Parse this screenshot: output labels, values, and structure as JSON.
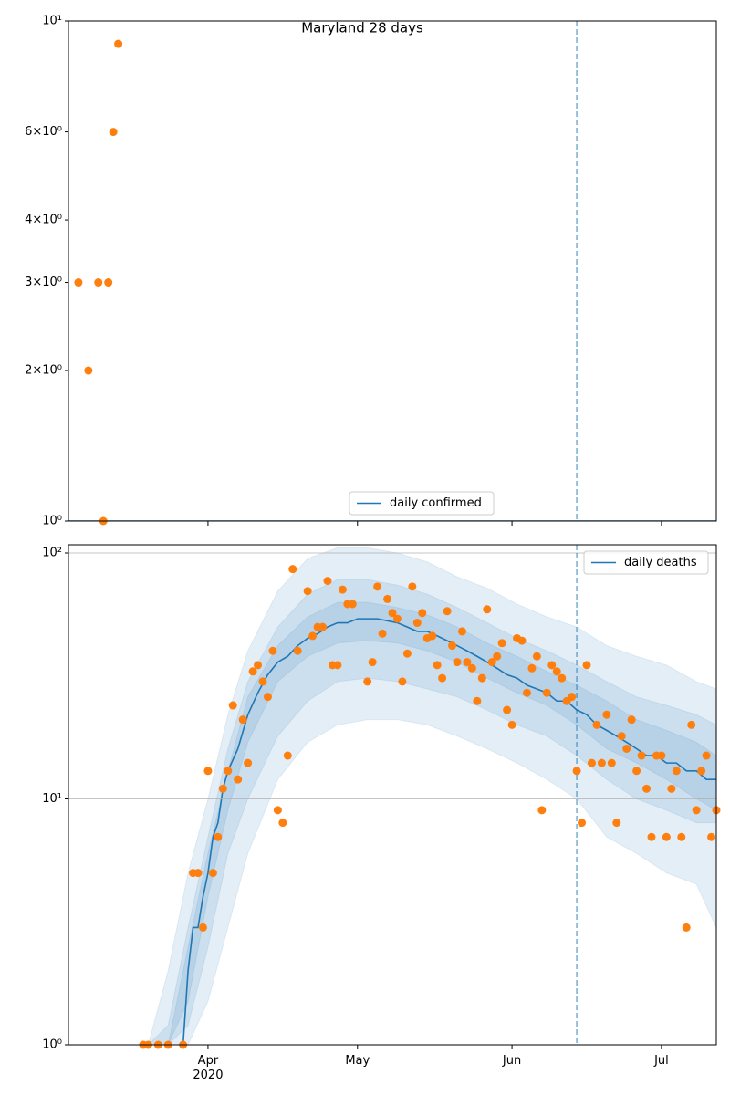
{
  "chart_data": [
    {
      "type": "line",
      "title": "Maryland 28 days",
      "log_y": true,
      "grid": false,
      "legend_loc": "lower center",
      "xlim": [
        64,
        194
      ],
      "ylim": [
        1,
        10
      ],
      "xticks": [
        {
          "value": 92,
          "label": ""
        },
        {
          "value": 122,
          "label": ""
        },
        {
          "value": 153,
          "label": ""
        },
        {
          "value": 183,
          "label": ""
        }
      ],
      "yticks": [
        {
          "value": 1,
          "label": "10⁰"
        },
        {
          "value": 2,
          "label": "2×10⁰"
        },
        {
          "value": 3,
          "label": "3×10⁰"
        },
        {
          "value": 4,
          "label": "4×10⁰"
        },
        {
          "value": 6,
          "label": "6×10⁰"
        },
        {
          "value": 10,
          "label": "10¹"
        }
      ],
      "vline_x": 166,
      "series": [
        {
          "name": "daily confirmed",
          "color": "#1f77b4",
          "x": [
            64,
            166,
            194
          ],
          "values": [
            1,
            1,
            1
          ]
        }
      ],
      "observed": {
        "color": "#ff7f0e",
        "x": [
          66,
          68,
          70,
          71,
          72,
          73,
          74
        ],
        "values": [
          3,
          2,
          3,
          1,
          3,
          6,
          9
        ]
      }
    },
    {
      "type": "line",
      "log_y": true,
      "grid": true,
      "legend_loc": "upper right",
      "xlim": [
        64,
        194
      ],
      "ylim": [
        1,
        108
      ],
      "xticks": [
        {
          "value": 92,
          "label": "Apr\n2020"
        },
        {
          "value": 122,
          "label": "May"
        },
        {
          "value": 153,
          "label": "Jun"
        },
        {
          "value": 183,
          "label": "Jul"
        }
      ],
      "yticks": [
        {
          "value": 1,
          "label": "10⁰"
        },
        {
          "value": 10,
          "label": "10¹"
        },
        {
          "value": 100,
          "label": "10²"
        }
      ],
      "vline_x": 166,
      "series": [
        {
          "name": "daily deaths",
          "color": "#1f77b4",
          "x": [
            87,
            88,
            89,
            90,
            91,
            92,
            93,
            94,
            95,
            96,
            98,
            100,
            102,
            104,
            106,
            108,
            110,
            112,
            114,
            116,
            118,
            120,
            122,
            124,
            126,
            128,
            130,
            132,
            134,
            136,
            138,
            140,
            142,
            144,
            146,
            148,
            150,
            152,
            154,
            156,
            158,
            160,
            162,
            164,
            166,
            168,
            170,
            172,
            174,
            176,
            178,
            180,
            182,
            184,
            186,
            188,
            190,
            192,
            194
          ],
          "values": [
            1,
            2,
            3,
            3,
            4,
            5,
            7,
            8,
            11,
            13,
            16,
            22,
            27,
            32,
            36,
            38,
            42,
            45,
            47,
            50,
            52,
            52,
            54,
            54,
            54,
            53,
            52,
            50,
            48,
            48,
            46,
            44,
            42,
            40,
            38,
            36,
            34,
            32,
            31,
            29,
            28,
            27,
            25,
            25,
            23,
            22,
            20,
            19,
            18,
            17,
            16,
            15,
            15,
            14,
            14,
            13,
            13,
            12,
            12
          ]
        }
      ],
      "bands": {
        "color": "#1f77b4",
        "x": [
          80,
          84,
          88,
          92,
          96,
          100,
          106,
          112,
          118,
          124,
          130,
          136,
          142,
          148,
          154,
          160,
          166,
          172,
          178,
          184,
          190,
          194
        ],
        "levels": [
          {
            "lower": [
              1,
              1,
              1,
              1.5,
              3,
              6,
              12,
              17,
              20,
              21,
              21,
              20,
              18,
              16,
              14,
              12,
              10,
              7,
              6,
              5,
              4.5,
              3
            ],
            "upper": [
              1,
              2,
              5,
              10,
              22,
              40,
              70,
              95,
              105,
              105,
              100,
              92,
              80,
              72,
              62,
              55,
              50,
              42,
              38,
              35,
              30,
              28
            ]
          },
          {
            "lower": [
              1,
              1,
              1.2,
              2.5,
              6,
              10,
              18,
              25,
              30,
              31,
              30,
              28,
              26,
              23,
              20,
              18,
              15,
              12,
              10,
              9,
              8,
              8
            ],
            "upper": [
              1,
              1.2,
              3,
              7,
              16,
              30,
              50,
              68,
              78,
              78,
              74,
              68,
              60,
              52,
              45,
              40,
              35,
              30,
              26,
              24,
              22,
              20
            ]
          },
          {
            "lower": [
              1,
              1,
              1.5,
              4,
              9,
              17,
              30,
              38,
              43,
              44,
              43,
              40,
              36,
              31,
              27,
              24,
              20,
              16,
              14,
              12,
              10,
              9
            ],
            "upper": [
              1,
              1,
              2.5,
              6,
              13,
              26,
              42,
              55,
              63,
              63,
              60,
              56,
              50,
              43,
              38,
              33,
              29,
              25,
              21,
              19,
              17,
              15
            ]
          }
        ]
      },
      "observed": {
        "color": "#ff7f0e",
        "x": [
          79,
          80,
          82,
          84,
          87,
          89,
          90,
          91,
          92,
          93,
          94,
          95,
          96,
          97,
          98,
          99,
          100,
          101,
          102,
          103,
          104,
          105,
          106,
          107,
          108,
          109,
          110,
          112,
          113,
          114,
          115,
          116,
          117,
          118,
          119,
          120,
          121,
          124,
          125,
          126,
          127,
          128,
          129,
          130,
          131,
          132,
          133,
          134,
          135,
          136,
          137,
          138,
          139,
          140,
          141,
          142,
          143,
          144,
          145,
          146,
          147,
          148,
          149,
          150,
          151,
          152,
          153,
          154,
          155,
          156,
          157,
          158,
          159,
          160,
          161,
          162,
          163,
          164,
          165,
          166,
          167,
          168,
          169,
          170,
          171,
          172,
          173,
          174,
          175,
          176,
          177,
          178,
          179,
          180,
          181,
          182,
          183,
          184,
          185,
          186,
          187,
          188,
          189,
          190,
          191,
          192,
          193,
          194
        ],
        "values": [
          1,
          1,
          1,
          1,
          1,
          5,
          5,
          3,
          13,
          5,
          7,
          11,
          13,
          24,
          12,
          21,
          14,
          33,
          35,
          30,
          26,
          40,
          9,
          8,
          15,
          86,
          40,
          70,
          46,
          50,
          50,
          77,
          35,
          35,
          71,
          62,
          62,
          30,
          36,
          73,
          47,
          65,
          57,
          54,
          30,
          39,
          73,
          52,
          57,
          45,
          46,
          35,
          31,
          58,
          42,
          36,
          48,
          36,
          34,
          25,
          31,
          59,
          36,
          38,
          43,
          23,
          20,
          45,
          44,
          27,
          34,
          38,
          9,
          27,
          35,
          33,
          31,
          25,
          26,
          13,
          8,
          35,
          14,
          20,
          14,
          22,
          14,
          8,
          18,
          16,
          21,
          13,
          15,
          11,
          7,
          15,
          15,
          7,
          11,
          13,
          7,
          3,
          20,
          9,
          13,
          15,
          7,
          9
        ]
      }
    }
  ]
}
